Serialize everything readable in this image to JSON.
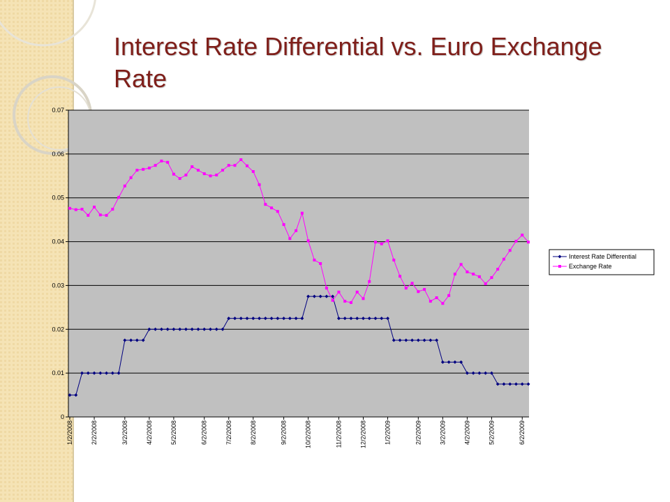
{
  "chart_data": {
    "type": "line",
    "title": "Interest Rate Differential vs.  Euro Exchange Rate",
    "categories": [
      "1/2/2008",
      null,
      null,
      null,
      "2/2/2008",
      null,
      null,
      null,
      null,
      "3/2/2008",
      null,
      null,
      null,
      "4/2/2008",
      null,
      null,
      null,
      "5/2/2008",
      null,
      null,
      null,
      null,
      "6/2/2008",
      null,
      null,
      null,
      "7/2/2008",
      null,
      null,
      null,
      "8/2/2008",
      null,
      null,
      null,
      null,
      "9/2/2008",
      null,
      null,
      null,
      "10/2/2008",
      null,
      null,
      null,
      null,
      "11/2/2008",
      null,
      null,
      null,
      "12/2/2008",
      null,
      null,
      null,
      "1/2/2009",
      null,
      null,
      null,
      null,
      "2/2/2009",
      null,
      null,
      null,
      "3/2/2009",
      null,
      null,
      null,
      "4/2/2009",
      null,
      null,
      null,
      "5/2/2009",
      null,
      null,
      null,
      null,
      "6/2/2009",
      null
    ],
    "series": [
      {
        "name": "Interest Rate Differential",
        "color": "#000080",
        "values": [
          0.005,
          0.005,
          0.01,
          0.01,
          0.01,
          0.01,
          0.01,
          0.01,
          0.01,
          0.0175,
          0.0175,
          0.0175,
          0.0175,
          0.02,
          0.02,
          0.02,
          0.02,
          0.02,
          0.02,
          0.02,
          0.02,
          0.02,
          0.02,
          0.02,
          0.02,
          0.02,
          0.0225,
          0.0225,
          0.0225,
          0.0225,
          0.0225,
          0.0225,
          0.0225,
          0.0225,
          0.0225,
          0.0225,
          0.0225,
          0.0225,
          0.0225,
          0.0275,
          0.0275,
          0.0275,
          0.0275,
          0.0275,
          0.0225,
          0.0225,
          0.0225,
          0.0225,
          0.0225,
          0.0225,
          0.0225,
          0.0225,
          0.0225,
          0.0175,
          0.0175,
          0.0175,
          0.0175,
          0.0175,
          0.0175,
          0.0175,
          0.0175,
          0.0125,
          0.0125,
          0.0125,
          0.0125,
          0.01,
          0.01,
          0.01,
          0.01,
          0.01,
          0.0075,
          0.0075,
          0.0075,
          0.0075,
          0.0075,
          0.0075
        ]
      },
      {
        "name": "Exchange Rate",
        "color": "#ff00ff",
        "values": [
          0.0476,
          0.0473,
          0.0474,
          0.046,
          0.0479,
          0.0461,
          0.046,
          0.0474,
          0.0501,
          0.0527,
          0.0546,
          0.0563,
          0.0565,
          0.0568,
          0.0574,
          0.0584,
          0.0581,
          0.0554,
          0.0544,
          0.0552,
          0.0571,
          0.0563,
          0.0555,
          0.055,
          0.0552,
          0.0563,
          0.0574,
          0.0574,
          0.0587,
          0.0573,
          0.056,
          0.053,
          0.0485,
          0.0477,
          0.0469,
          0.0439,
          0.0407,
          0.0425,
          0.0465,
          0.0402,
          0.0358,
          0.035,
          0.0294,
          0.0266,
          0.0285,
          0.0264,
          0.0261,
          0.0285,
          0.027,
          0.0309,
          0.0399,
          0.0395,
          0.0402,
          0.0358,
          0.0321,
          0.0294,
          0.0305,
          0.0286,
          0.0291,
          0.0264,
          0.0272,
          0.0259,
          0.0277,
          0.0326,
          0.0348,
          0.0331,
          0.0326,
          0.032,
          0.0304,
          0.0318,
          0.0337,
          0.036,
          0.038,
          0.0401,
          0.0415,
          0.0399
        ]
      }
    ],
    "ylim": [
      0,
      0.07
    ],
    "yticks": [
      0,
      0.01,
      0.02,
      0.03,
      0.04,
      0.05,
      0.06,
      0.07
    ],
    "grid": true,
    "legend": "right"
  }
}
